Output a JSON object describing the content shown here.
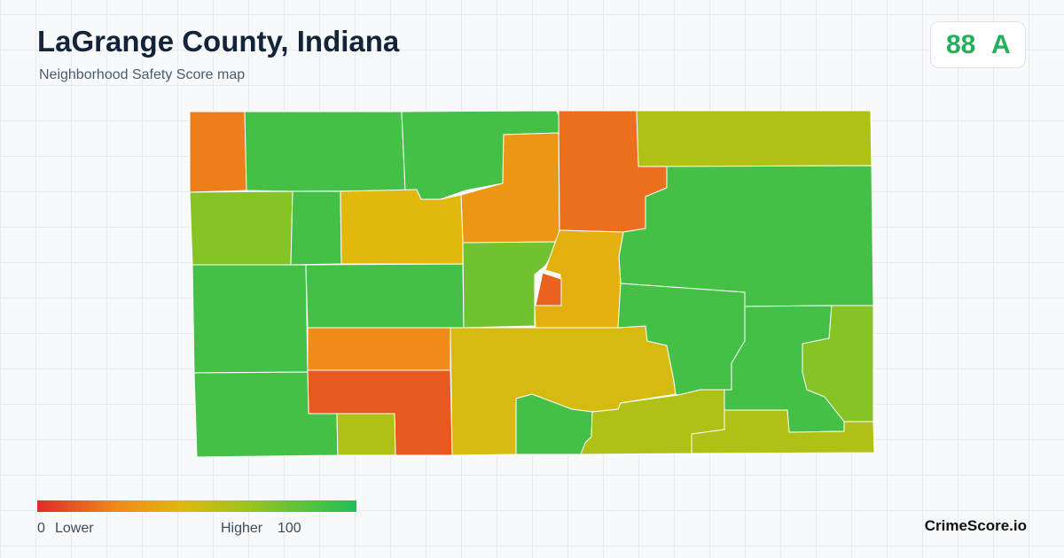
{
  "header": {
    "title": "LaGrange County, Indiana",
    "subtitle": "Neighborhood Safety Score map"
  },
  "score": {
    "value": 88,
    "grade": "A"
  },
  "legend": {
    "min": 0,
    "low_label": "Lower",
    "high_label": "Higher",
    "max": 100
  },
  "region_scores": [
    22,
    90,
    90,
    30,
    18,
    60,
    90,
    72,
    90,
    45,
    90,
    90,
    78,
    42,
    15,
    25,
    12,
    90,
    60,
    48,
    90,
    90,
    60,
    90,
    72,
    60
  ],
  "brand": "CrimeScore.io"
}
